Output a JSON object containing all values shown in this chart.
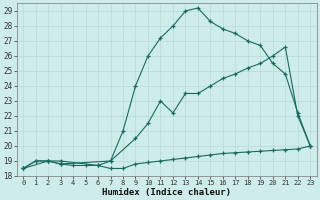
{
  "xlabel": "Humidex (Indice chaleur)",
  "bg_color": "#ceecea",
  "grid_color": "#b8dbd8",
  "line_color": "#1a6b5e",
  "xlim": [
    -0.5,
    23.5
  ],
  "ylim": [
    18,
    29.5
  ],
  "xticks": [
    0,
    1,
    2,
    3,
    4,
    5,
    6,
    7,
    8,
    9,
    10,
    11,
    12,
    13,
    14,
    15,
    16,
    17,
    18,
    19,
    20,
    21,
    22,
    23
  ],
  "yticks": [
    18,
    19,
    20,
    21,
    22,
    23,
    24,
    25,
    26,
    27,
    28,
    29
  ],
  "line1_x": [
    0,
    1,
    2,
    3,
    4,
    5,
    6,
    7,
    8,
    9,
    10,
    11,
    12,
    13,
    14,
    15,
    16,
    17,
    18,
    19,
    20,
    21,
    22,
    23
  ],
  "line1_y": [
    18.5,
    19.0,
    19.0,
    18.8,
    18.7,
    18.7,
    18.7,
    18.5,
    18.5,
    18.8,
    18.9,
    19.0,
    19.1,
    19.2,
    19.3,
    19.4,
    19.5,
    19.55,
    19.6,
    19.65,
    19.7,
    19.75,
    19.8,
    20.0
  ],
  "line2_x": [
    0,
    1,
    2,
    3,
    7,
    9,
    10,
    11,
    12,
    13,
    14,
    15,
    16,
    17,
    18,
    19,
    20,
    21,
    22,
    23
  ],
  "line2_y": [
    18.5,
    19.0,
    19.0,
    18.8,
    19.0,
    20.5,
    21.5,
    23.0,
    22.2,
    23.5,
    23.5,
    24.0,
    24.5,
    24.8,
    25.2,
    25.5,
    26.0,
    26.6,
    22.0,
    20.0
  ],
  "line3_x": [
    0,
    2,
    3,
    6,
    7,
    8,
    9,
    10,
    11,
    12,
    13,
    14,
    15,
    16,
    17,
    18,
    19,
    20,
    21,
    22,
    23
  ],
  "line3_y": [
    18.5,
    19.0,
    19.0,
    18.7,
    19.0,
    21.0,
    24.0,
    26.0,
    27.2,
    28.0,
    29.0,
    29.2,
    28.3,
    27.8,
    27.5,
    27.0,
    26.7,
    25.5,
    24.8,
    22.2,
    20.0
  ]
}
